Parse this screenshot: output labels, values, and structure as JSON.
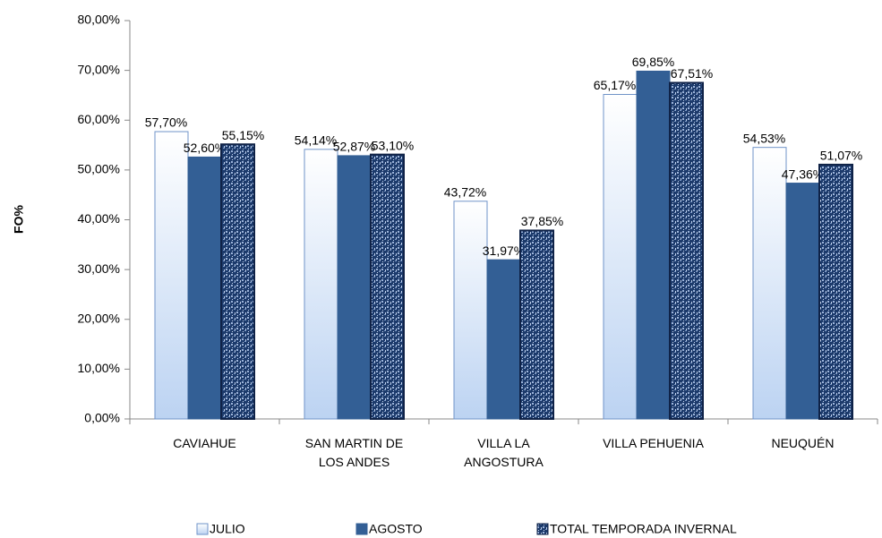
{
  "chart_data": {
    "type": "bar",
    "y_label": "FO%",
    "categories": [
      "CAVIAHUE",
      "SAN MARTIN  DE\nLOS ANDES",
      "VILLA LA\nANGOSTURA",
      "VILLA PEHUENIA",
      "NEUQUÉN"
    ],
    "series": [
      {
        "name": "JULIO",
        "color": "#bcd3f2",
        "values": [
          57.7,
          54.14,
          43.72,
          65.17,
          54.53
        ],
        "value_labels": [
          "57,70%",
          "54,14%",
          "43,72%",
          "65,17%",
          "54,53%"
        ]
      },
      {
        "name": "AGOSTO",
        "color": "#335f95",
        "values": [
          52.6,
          52.87,
          31.97,
          69.85,
          47.36
        ],
        "value_labels": [
          "52,60%",
          "52,87%",
          "31,97%",
          "69,85%",
          "47,36%"
        ]
      },
      {
        "name": "TOTAL TEMPORADA INVERNAL",
        "color": "#1c3a6b",
        "values": [
          55.15,
          53.1,
          37.85,
          67.51,
          51.07
        ],
        "value_labels": [
          "55,15%",
          "53,10%",
          "37,85%",
          "67,51%",
          "51,07%"
        ]
      }
    ],
    "ylim": [
      0,
      80
    ],
    "yticks": [
      {
        "value": 0,
        "label": "0,00%"
      },
      {
        "value": 10,
        "label": "10,00%"
      },
      {
        "value": 20,
        "label": "20,00%"
      },
      {
        "value": 30,
        "label": "30,00%"
      },
      {
        "value": 40,
        "label": "40,00%"
      },
      {
        "value": 50,
        "label": "50,00%"
      },
      {
        "value": 60,
        "label": "60,00%"
      },
      {
        "value": 70,
        "label": "70,00%"
      },
      {
        "value": 80,
        "label": "80,00%"
      }
    ],
    "grid": false,
    "legend": "bottom"
  }
}
